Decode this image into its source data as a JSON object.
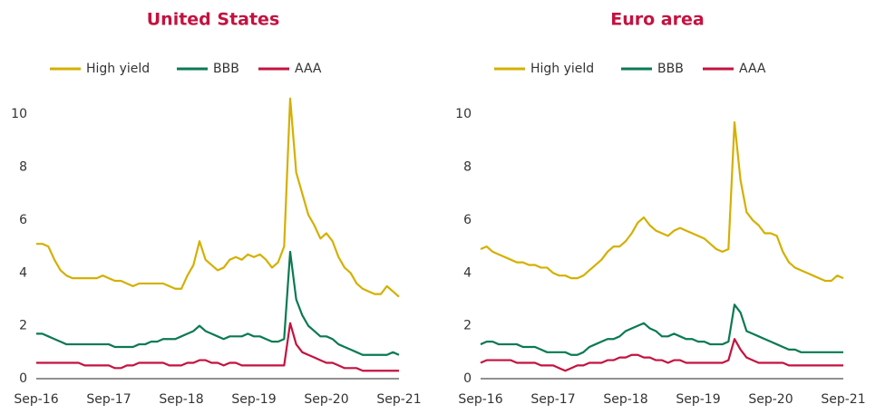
{
  "chart_data": [
    {
      "type": "line",
      "title": "United States",
      "categories": [
        "Sep-16",
        null,
        null,
        null,
        null,
        null,
        null,
        null,
        null,
        null,
        null,
        null,
        "Sep-17",
        null,
        null,
        null,
        null,
        null,
        null,
        null,
        null,
        null,
        null,
        null,
        "Sep-18",
        null,
        null,
        null,
        null,
        null,
        null,
        null,
        null,
        null,
        null,
        null,
        "Sep-19",
        null,
        null,
        null,
        null,
        null,
        null,
        null,
        null,
        null,
        null,
        null,
        "Sep-20",
        null,
        null,
        null,
        null,
        null,
        null,
        null,
        null,
        null,
        null,
        null,
        "Sep-21"
      ],
      "series": [
        {
          "name": "High yield",
          "color": "#d4b000",
          "values": [
            5.1,
            5.1,
            5.0,
            4.5,
            4.1,
            3.9,
            3.8,
            3.8,
            3.8,
            3.8,
            3.8,
            3.9,
            3.8,
            3.7,
            3.7,
            3.6,
            3.5,
            3.6,
            3.6,
            3.6,
            3.6,
            3.6,
            3.5,
            3.4,
            3.4,
            3.9,
            4.3,
            5.2,
            4.5,
            4.3,
            4.1,
            4.2,
            4.5,
            4.6,
            4.5,
            4.7,
            4.6,
            4.7,
            4.5,
            4.2,
            4.4,
            5.0,
            10.6,
            7.8,
            7.0,
            6.2,
            5.8,
            5.3,
            5.5,
            5.2,
            4.6,
            4.2,
            4.0,
            3.6,
            3.4,
            3.3,
            3.2,
            3.2,
            3.5,
            3.3,
            3.1
          ]
        },
        {
          "name": "BBB",
          "color": "#0a7a52",
          "values": [
            1.7,
            1.7,
            1.6,
            1.5,
            1.4,
            1.3,
            1.3,
            1.3,
            1.3,
            1.3,
            1.3,
            1.3,
            1.3,
            1.2,
            1.2,
            1.2,
            1.2,
            1.3,
            1.3,
            1.4,
            1.4,
            1.5,
            1.5,
            1.5,
            1.6,
            1.7,
            1.8,
            2.0,
            1.8,
            1.7,
            1.6,
            1.5,
            1.6,
            1.6,
            1.6,
            1.7,
            1.6,
            1.6,
            1.5,
            1.4,
            1.4,
            1.5,
            4.8,
            3.0,
            2.4,
            2.0,
            1.8,
            1.6,
            1.6,
            1.5,
            1.3,
            1.2,
            1.1,
            1.0,
            0.9,
            0.9,
            0.9,
            0.9,
            0.9,
            1.0,
            0.9
          ]
        },
        {
          "name": "AAA",
          "color": "#c4123f",
          "values": [
            0.6,
            0.6,
            0.6,
            0.6,
            0.6,
            0.6,
            0.6,
            0.6,
            0.5,
            0.5,
            0.5,
            0.5,
            0.5,
            0.4,
            0.4,
            0.5,
            0.5,
            0.6,
            0.6,
            0.6,
            0.6,
            0.6,
            0.5,
            0.5,
            0.5,
            0.6,
            0.6,
            0.7,
            0.7,
            0.6,
            0.6,
            0.5,
            0.6,
            0.6,
            0.5,
            0.5,
            0.5,
            0.5,
            0.5,
            0.5,
            0.5,
            0.5,
            2.1,
            1.3,
            1.0,
            0.9,
            0.8,
            0.7,
            0.6,
            0.6,
            0.5,
            0.4,
            0.4,
            0.4,
            0.3,
            0.3,
            0.3,
            0.3,
            0.3,
            0.3,
            0.3
          ]
        }
      ],
      "ylim": [
        0,
        11
      ],
      "yticks": [
        0,
        2,
        4,
        6,
        8,
        10
      ]
    },
    {
      "type": "line",
      "title": "Euro area",
      "categories": [
        "Sep-16",
        null,
        null,
        null,
        null,
        null,
        null,
        null,
        null,
        null,
        null,
        null,
        "Sep-17",
        null,
        null,
        null,
        null,
        null,
        null,
        null,
        null,
        null,
        null,
        null,
        "Sep-18",
        null,
        null,
        null,
        null,
        null,
        null,
        null,
        null,
        null,
        null,
        null,
        "Sep-19",
        null,
        null,
        null,
        null,
        null,
        null,
        null,
        null,
        null,
        null,
        null,
        "Sep-20",
        null,
        null,
        null,
        null,
        null,
        null,
        null,
        null,
        null,
        null,
        null,
        "Sep-21"
      ],
      "series": [
        {
          "name": "High yield",
          "color": "#d4b000",
          "values": [
            4.9,
            5.0,
            4.8,
            4.7,
            4.6,
            4.5,
            4.4,
            4.4,
            4.3,
            4.3,
            4.2,
            4.2,
            4.0,
            3.9,
            3.9,
            3.8,
            3.8,
            3.9,
            4.1,
            4.3,
            4.5,
            4.8,
            5.0,
            5.0,
            5.2,
            5.5,
            5.9,
            6.1,
            5.8,
            5.6,
            5.5,
            5.4,
            5.6,
            5.7,
            5.6,
            5.5,
            5.4,
            5.3,
            5.1,
            4.9,
            4.8,
            4.9,
            9.7,
            7.5,
            6.3,
            6.0,
            5.8,
            5.5,
            5.5,
            5.4,
            4.8,
            4.4,
            4.2,
            4.1,
            4.0,
            3.9,
            3.8,
            3.7,
            3.7,
            3.9,
            3.8
          ]
        },
        {
          "name": "BBB",
          "color": "#0a7a52",
          "values": [
            1.3,
            1.4,
            1.4,
            1.3,
            1.3,
            1.3,
            1.3,
            1.2,
            1.2,
            1.2,
            1.1,
            1.0,
            1.0,
            1.0,
            1.0,
            0.9,
            0.9,
            1.0,
            1.2,
            1.3,
            1.4,
            1.5,
            1.5,
            1.6,
            1.8,
            1.9,
            2.0,
            2.1,
            1.9,
            1.8,
            1.6,
            1.6,
            1.7,
            1.6,
            1.5,
            1.5,
            1.4,
            1.4,
            1.3,
            1.3,
            1.3,
            1.4,
            2.8,
            2.5,
            1.8,
            1.7,
            1.6,
            1.5,
            1.4,
            1.3,
            1.2,
            1.1,
            1.1,
            1.0,
            1.0,
            1.0,
            1.0,
            1.0,
            1.0,
            1.0,
            1.0
          ]
        },
        {
          "name": "AAA",
          "color": "#c4123f",
          "values": [
            0.6,
            0.7,
            0.7,
            0.7,
            0.7,
            0.7,
            0.6,
            0.6,
            0.6,
            0.6,
            0.5,
            0.5,
            0.5,
            0.4,
            0.3,
            0.4,
            0.5,
            0.5,
            0.6,
            0.6,
            0.6,
            0.7,
            0.7,
            0.8,
            0.8,
            0.9,
            0.9,
            0.8,
            0.8,
            0.7,
            0.7,
            0.6,
            0.7,
            0.7,
            0.6,
            0.6,
            0.6,
            0.6,
            0.6,
            0.6,
            0.6,
            0.7,
            1.5,
            1.1,
            0.8,
            0.7,
            0.6,
            0.6,
            0.6,
            0.6,
            0.6,
            0.5,
            0.5,
            0.5,
            0.5,
            0.5,
            0.5,
            0.5,
            0.5,
            0.5,
            0.5
          ]
        }
      ],
      "ylim": [
        0,
        11
      ],
      "yticks": [
        0,
        2,
        4,
        6,
        8,
        10
      ]
    }
  ]
}
